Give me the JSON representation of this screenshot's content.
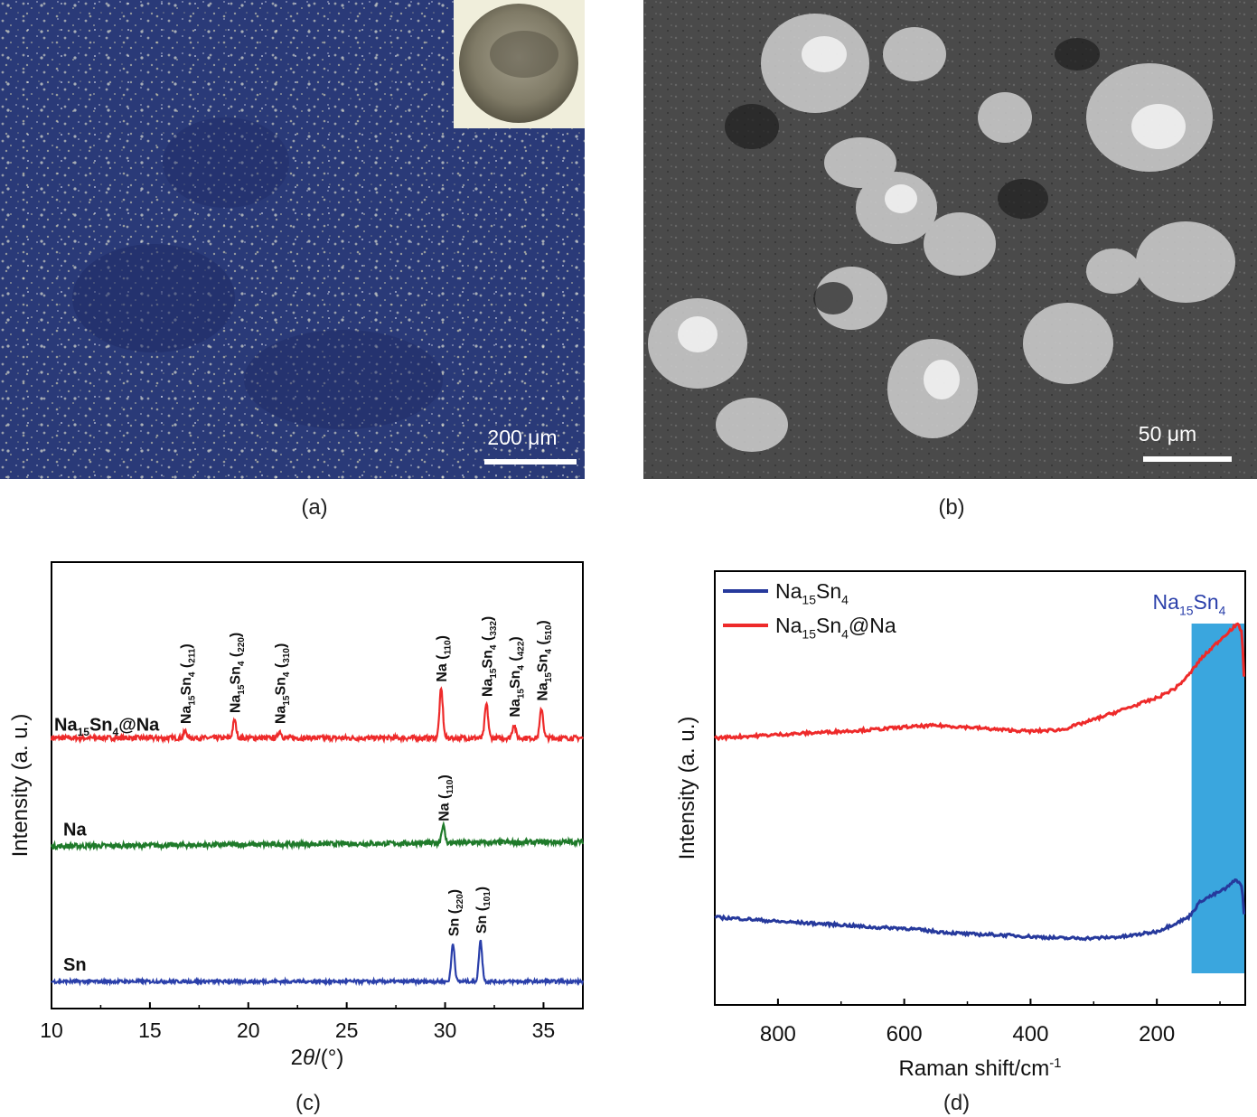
{
  "figure": {
    "panel_a": {
      "caption": "(a)",
      "scale_bar_label": "200 μm",
      "colors": {
        "background": "#2a3a78",
        "particles": "#e8e6c8",
        "inset_bg": "#f0eedb",
        "inset_disc": "#8f8a78"
      }
    },
    "panel_b": {
      "caption": "(b)",
      "scale_bar_label": "50 μm",
      "colors": {
        "background": "#4a4a4a",
        "particles": "#d8d8d8"
      }
    }
  },
  "chart_data": [
    {
      "id": "c",
      "type": "line",
      "caption": "(c)",
      "xlabel": "2θ/(°)",
      "ylabel": "Intensity (a. u.)",
      "xlim": [
        10,
        37
      ],
      "x_ticks": [
        10,
        15,
        20,
        25,
        30,
        35
      ],
      "y_ticks": [],
      "series": [
        {
          "name": "Na15Sn4@Na",
          "color": "#ee2a2a",
          "baseline": 2.0,
          "noise": 0.018,
          "peaks": [
            {
              "x": 16.8,
              "h": 0.05,
              "label": "Na15Sn4 (211)"
            },
            {
              "x": 19.3,
              "h": 0.13,
              "label": "Na15Sn4 (220)"
            },
            {
              "x": 21.6,
              "h": 0.05,
              "label": "Na15Sn4 (310)"
            },
            {
              "x": 29.8,
              "h": 0.36,
              "label": "Na (110)"
            },
            {
              "x": 32.1,
              "h": 0.25,
              "label": "Na15Sn4 (332)"
            },
            {
              "x": 33.5,
              "h": 0.1,
              "label": "Na15Sn4 (422)"
            },
            {
              "x": 34.9,
              "h": 0.22,
              "label": "Na15Sn4 (510)"
            }
          ]
        },
        {
          "name": "Na",
          "color": "#1f7a2a",
          "baseline": 1.2,
          "noise": 0.018,
          "slope": 0.0012,
          "peaks": [
            {
              "x": 29.9,
              "h": 0.13,
              "label": "Na (110)"
            }
          ]
        },
        {
          "name": "Sn",
          "color": "#2a3faa",
          "baseline": 0.2,
          "noise": 0.012,
          "peaks": [
            {
              "x": 30.4,
              "h": 0.28,
              "label": "Sn (220)"
            },
            {
              "x": 31.8,
              "h": 0.3,
              "label": "Sn (101)"
            }
          ]
        }
      ]
    },
    {
      "id": "d",
      "type": "line",
      "caption": "(d)",
      "xlabel": "Raman shift/cm-1",
      "ylabel": "Intensity (a. u.)",
      "xlim": [
        900,
        60
      ],
      "x_ticks": [
        800,
        600,
        400,
        200
      ],
      "y_ticks": [],
      "highlight": {
        "x_range": [
          145,
          60
        ],
        "label": "Na15Sn4",
        "color": "#3aa6de"
      },
      "legend": {
        "position": "top-left",
        "entries": [
          "Na15Sn4",
          "Na15Sn4@Na"
        ]
      },
      "series": [
        {
          "name": "Na15Sn4",
          "color": "#26399c",
          "x": [
            900,
            850,
            800,
            750,
            700,
            650,
            600,
            550,
            500,
            450,
            400,
            350,
            300,
            250,
            200,
            170,
            150,
            130,
            110,
            90,
            75,
            70,
            65,
            62
          ],
          "y": [
            1.05,
            1.03,
            1.0,
            0.98,
            0.96,
            0.93,
            0.92,
            0.88,
            0.85,
            0.84,
            0.82,
            0.8,
            0.8,
            0.82,
            0.88,
            0.98,
            1.05,
            1.25,
            1.32,
            1.4,
            1.5,
            1.48,
            1.4,
            1.1
          ]
        },
        {
          "name": "Na15Sn4@Na",
          "color": "#ee2a2a",
          "x": [
            900,
            850,
            800,
            750,
            700,
            650,
            600,
            550,
            500,
            450,
            400,
            350,
            300,
            250,
            200,
            170,
            150,
            130,
            110,
            90,
            75,
            70,
            65,
            62
          ],
          "y": [
            3.2,
            3.22,
            3.24,
            3.26,
            3.28,
            3.3,
            3.33,
            3.35,
            3.33,
            3.3,
            3.28,
            3.3,
            3.42,
            3.55,
            3.68,
            3.8,
            3.95,
            4.15,
            4.3,
            4.45,
            4.55,
            4.55,
            4.45,
            3.95
          ]
        }
      ]
    }
  ]
}
